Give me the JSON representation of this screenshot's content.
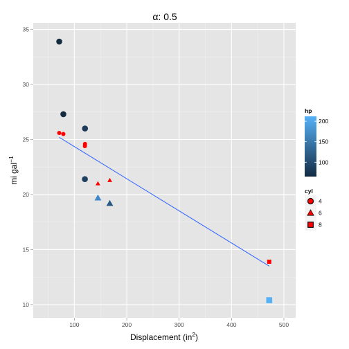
{
  "chart_data": {
    "type": "scatter",
    "title_prefix": "α",
    "title_value": ": 0.5",
    "xlabel_base": "Displacement (in",
    "xlabel_sup": "2",
    "xlabel_end": ")",
    "ylabel_base": "mi gal",
    "ylabel_sup": "−1",
    "xlim": [
      21.5,
      522.5
    ],
    "ylim": [
      8.8,
      35.6
    ],
    "x_ticks": [
      100,
      200,
      300,
      400,
      500
    ],
    "y_ticks": [
      10,
      15,
      20,
      25,
      30,
      35
    ],
    "grid": true,
    "points": [
      {
        "x": 71.1,
        "y": 33.9,
        "cyl": 4,
        "hp": 65,
        "fill": "#152b3f"
      },
      {
        "x": 79.0,
        "y": 27.3,
        "cyl": 4,
        "hp": 66,
        "fill": "#152b3f"
      },
      {
        "x": 120.3,
        "y": 26.0,
        "cyl": 4,
        "hp": 91,
        "fill": "#1e3c59"
      },
      {
        "x": 120.1,
        "y": 21.4,
        "cyl": 4,
        "hp": 97,
        "fill": "#204060"
      },
      {
        "x": 145.0,
        "y": 19.7,
        "cyl": 6,
        "hp": 175,
        "fill": "#3f87c9"
      },
      {
        "x": 167.6,
        "y": 19.2,
        "cyl": 6,
        "hp": 123,
        "fill": "#2a5a84"
      },
      {
        "x": 472.0,
        "y": 10.4,
        "cyl": 8,
        "hp": 205,
        "fill": "#56b1f7"
      }
    ],
    "smooth_points": [
      {
        "x": 71.1,
        "y": 25.6,
        "cyl": 4
      },
      {
        "x": 79.0,
        "y": 25.5,
        "cyl": 4
      },
      {
        "x": 120.3,
        "y": 24.6,
        "cyl": 4
      },
      {
        "x": 120.1,
        "y": 24.4,
        "cyl": 4
      },
      {
        "x": 145.0,
        "y": 21.0,
        "cyl": 6
      },
      {
        "x": 167.6,
        "y": 21.3,
        "cyl": 6
      },
      {
        "x": 472.0,
        "y": 13.9,
        "cyl": 8
      }
    ],
    "smooth_color": "#ff0000",
    "trend_line": {
      "x": [
        71.1,
        472.0
      ],
      "y": [
        25.2,
        13.5
      ],
      "color": "#3366ff"
    },
    "legend_hp": {
      "title": "hp",
      "ticks": [
        100,
        150,
        200
      ],
      "range": [
        65,
        212
      ],
      "low_color": "#132b43",
      "high_color": "#56b1f7"
    },
    "legend_cyl": {
      "title": "cyl",
      "items": [
        {
          "label": "4",
          "shape": "circle"
        },
        {
          "label": "6",
          "shape": "triangle"
        },
        {
          "label": "8",
          "shape": "square"
        }
      ]
    },
    "legend_placement": "right"
  }
}
